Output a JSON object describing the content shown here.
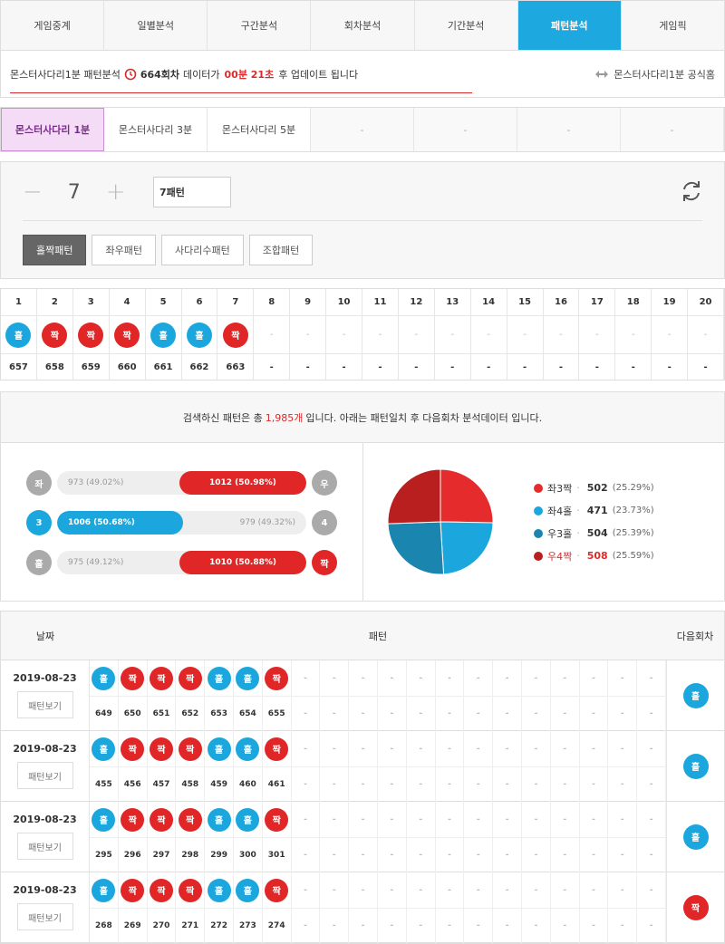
{
  "tabs": [
    "게임중계",
    "일별분석",
    "구간분석",
    "회차분석",
    "기간분석",
    "패턴분석",
    "게임픽"
  ],
  "active_tab": 5,
  "info": {
    "game": "몬스터사다리1분 패턴분석",
    "round": "664회차",
    "mid": "데이터가",
    "time": "00분 21초",
    "tail": "후 업데이트 됩니다",
    "official": "몬스터사다리1분 공식홈"
  },
  "subtabs": [
    "몬스터사다리 1분",
    "몬스터사다리 3분",
    "몬스터사다리 5분",
    "-",
    "-",
    "-",
    "-"
  ],
  "control": {
    "count": "7",
    "pattern_input": "7패턴",
    "buttons": [
      "홀짝패턴",
      "좌우패턴",
      "사다리수패턴",
      "조합패턴"
    ]
  },
  "grid": {
    "headers": [
      "1",
      "2",
      "3",
      "4",
      "5",
      "6",
      "7",
      "8",
      "9",
      "10",
      "11",
      "12",
      "13",
      "14",
      "15",
      "16",
      "17",
      "18",
      "19",
      "20"
    ],
    "balls": [
      "홀",
      "짝",
      "짝",
      "짝",
      "홀",
      "홀",
      "짝",
      "-",
      "-",
      "-",
      "-",
      "-",
      "-",
      "-",
      "-",
      "-",
      "-",
      "-",
      "-",
      "-"
    ],
    "rounds": [
      "657",
      "658",
      "659",
      "660",
      "661",
      "662",
      "663",
      "-",
      "-",
      "-",
      "-",
      "-",
      "-",
      "-",
      "-",
      "-",
      "-",
      "-",
      "-",
      "-"
    ]
  },
  "stats": {
    "pre": "검색하신 패턴은 총",
    "count": "1,985개",
    "post": "입니다. 아래는 패턴일치 후 다음회차 분석데이터 입니다.",
    "bars": [
      {
        "left_icon": "좌",
        "left_label": "973 (49.02%)",
        "right_label": "1012 (50.98%)",
        "right_icon": "우",
        "left_ratio": 0.4902,
        "winner": "right"
      },
      {
        "left_icon": "3",
        "left_label": "1006 (50.68%)",
        "right_label": "979 (49.32%)",
        "right_icon": "4",
        "left_ratio": 0.5068,
        "winner": "left"
      },
      {
        "left_icon": "홀",
        "left_label": "975 (49.12%)",
        "right_label": "1010 (50.88%)",
        "right_icon": "짝",
        "left_ratio": 0.4912,
        "winner": "right"
      }
    ],
    "legend": [
      {
        "label": "좌3짝",
        "value": "502",
        "pct": "(25.29%)",
        "color": "#e52b2b",
        "share": 25.29
      },
      {
        "label": "좌4홀",
        "value": "471",
        "pct": "(23.73%)",
        "color": "#1ba7de",
        "share": 23.73
      },
      {
        "label": "우3홀",
        "value": "504",
        "pct": "(25.39%)",
        "color": "#1a86b0",
        "share": 25.39
      },
      {
        "label": "우4짝",
        "value": "508",
        "pct": "(25.59%)",
        "color": "#b91f1f",
        "share": 25.59
      }
    ]
  },
  "history": {
    "col_date": "날짜",
    "col_pattern": "패턴",
    "col_next": "다음회차",
    "view_label": "패턴보기",
    "rows": [
      {
        "date": "2019-08-23",
        "balls": [
          "홀",
          "짝",
          "짝",
          "짝",
          "홀",
          "홀",
          "짝"
        ],
        "nums": [
          "649",
          "650",
          "651",
          "652",
          "653",
          "654",
          "655"
        ],
        "next": "홀"
      },
      {
        "date": "2019-08-23",
        "balls": [
          "홀",
          "짝",
          "짝",
          "짝",
          "홀",
          "홀",
          "짝"
        ],
        "nums": [
          "455",
          "456",
          "457",
          "458",
          "459",
          "460",
          "461"
        ],
        "next": "홀"
      },
      {
        "date": "2019-08-23",
        "balls": [
          "홀",
          "짝",
          "짝",
          "짝",
          "홀",
          "홀",
          "짝"
        ],
        "nums": [
          "295",
          "296",
          "297",
          "298",
          "299",
          "300",
          "301"
        ],
        "next": "홀"
      },
      {
        "date": "2019-08-23",
        "balls": [
          "홀",
          "짝",
          "짝",
          "짝",
          "홀",
          "홀",
          "짝"
        ],
        "nums": [
          "268",
          "269",
          "270",
          "271",
          "272",
          "273",
          "274"
        ],
        "next": "짝"
      }
    ]
  }
}
